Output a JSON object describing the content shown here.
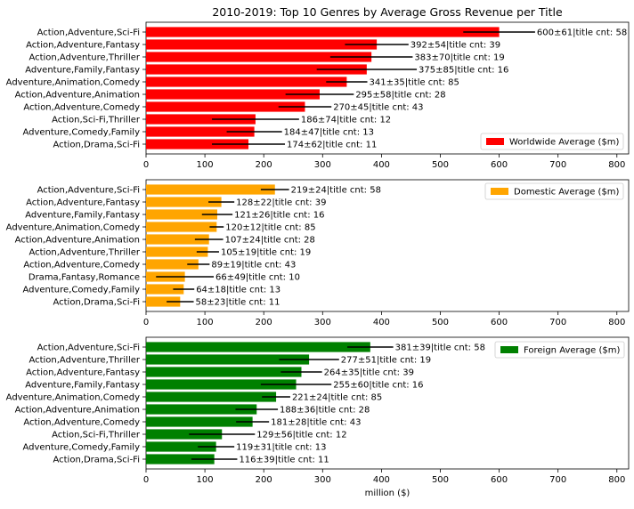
{
  "title": "2010-2019: Top 10 Genres by Average Gross Revenue per Title",
  "chart_data": [
    {
      "type": "bar",
      "orientation": "horizontal",
      "xlim": [
        0,
        820
      ],
      "xticks": [
        0,
        100,
        200,
        300,
        400,
        500,
        600,
        700,
        800
      ],
      "xlabel": "",
      "legend": {
        "label": "Worldwide Average ($m)",
        "placement": "bottom-right"
      },
      "color": "#ff0000",
      "categories": [
        "Action,Adventure,Sci-Fi",
        "Action,Adventure,Fantasy",
        "Action,Adventure,Thriller",
        "Adventure,Family,Fantasy",
        "Adventure,Animation,Comedy",
        "Action,Adventure,Animation",
        "Action,Adventure,Comedy",
        "Action,Sci-Fi,Thriller",
        "Adventure,Comedy,Family",
        "Action,Drama,Sci-Fi"
      ],
      "values": [
        600,
        392,
        383,
        375,
        341,
        295,
        270,
        186,
        184,
        174
      ],
      "errors": [
        61,
        54,
        70,
        85,
        35,
        58,
        45,
        74,
        47,
        62
      ],
      "labels": [
        "600±61|title cnt: 58",
        "392±54|title cnt: 39",
        "383±70|title cnt: 19",
        "375±85|title cnt: 16",
        "341±35|title cnt: 85",
        "295±58|title cnt: 28",
        "270±45|title cnt: 43",
        "186±74|title cnt: 12",
        "184±47|title cnt: 13",
        "174±62|title cnt: 11"
      ]
    },
    {
      "type": "bar",
      "orientation": "horizontal",
      "xlim": [
        0,
        820
      ],
      "xticks": [
        0,
        100,
        200,
        300,
        400,
        500,
        600,
        700,
        800
      ],
      "xlabel": "",
      "legend": {
        "label": "Domestic Average ($m)",
        "placement": "top-right"
      },
      "color": "#ffa500",
      "categories": [
        "Action,Adventure,Sci-Fi",
        "Action,Adventure,Fantasy",
        "Adventure,Family,Fantasy",
        "Adventure,Animation,Comedy",
        "Action,Adventure,Animation",
        "Action,Adventure,Thriller",
        "Action,Adventure,Comedy",
        "Drama,Fantasy,Romance",
        "Adventure,Comedy,Family",
        "Action,Drama,Sci-Fi"
      ],
      "values": [
        219,
        128,
        121,
        120,
        107,
        105,
        89,
        66,
        64,
        58
      ],
      "errors": [
        24,
        22,
        26,
        12,
        24,
        19,
        19,
        49,
        18,
        23
      ],
      "labels": [
        "219±24|title cnt: 58",
        "128±22|title cnt: 39",
        "121±26|title cnt: 16",
        "120±12|title cnt: 85",
        "107±24|title cnt: 28",
        "105±19|title cnt: 19",
        "89±19|title cnt: 43",
        "66±49|title cnt: 10",
        "64±18|title cnt: 13",
        "58±23|title cnt: 11"
      ]
    },
    {
      "type": "bar",
      "orientation": "horizontal",
      "xlim": [
        0,
        820
      ],
      "xticks": [
        0,
        100,
        200,
        300,
        400,
        500,
        600,
        700,
        800
      ],
      "xlabel": "million ($)",
      "legend": {
        "label": "Foreign Average ($m)",
        "placement": "top-right"
      },
      "color": "#008000",
      "categories": [
        "Action,Adventure,Sci-Fi",
        "Action,Adventure,Thriller",
        "Action,Adventure,Fantasy",
        "Adventure,Family,Fantasy",
        "Adventure,Animation,Comedy",
        "Action,Adventure,Animation",
        "Action,Adventure,Comedy",
        "Action,Sci-Fi,Thriller",
        "Adventure,Comedy,Family",
        "Action,Drama,Sci-Fi"
      ],
      "values": [
        381,
        277,
        264,
        255,
        221,
        188,
        181,
        129,
        119,
        116
      ],
      "errors": [
        39,
        51,
        35,
        60,
        24,
        36,
        28,
        56,
        31,
        39
      ],
      "labels": [
        "381±39|title cnt: 58",
        "277±51|title cnt: 19",
        "264±35|title cnt: 39",
        "255±60|title cnt: 16",
        "221±24|title cnt: 85",
        "188±36|title cnt: 28",
        "181±28|title cnt: 43",
        "129±56|title cnt: 12",
        "119±31|title cnt: 13",
        "116±39|title cnt: 11"
      ]
    }
  ]
}
